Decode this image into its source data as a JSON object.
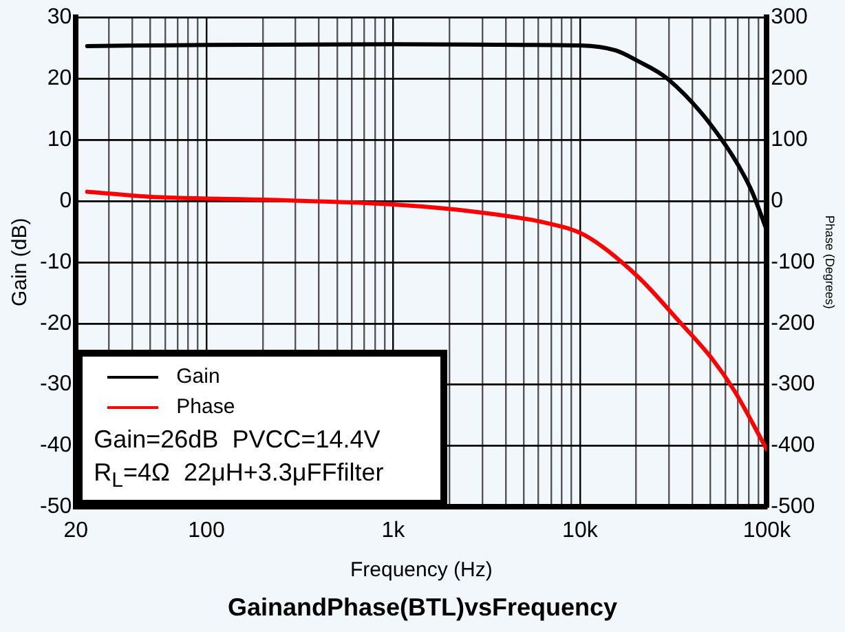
{
  "chart_data": {
    "type": "line",
    "title": "GainandPhase(BTL)vsFrequency",
    "xlabel": "Frequency (Hz)",
    "ylabel": "Gain (dB)",
    "y2label": "Phase (Degrees)",
    "log": "x",
    "grid": true,
    "legend": "bottom left",
    "marker": "none",
    "line_style": "solid",
    "xlim": [
      20,
      100000
    ],
    "xticks": [
      20,
      {
        "value": 30,
        "label": null
      },
      {
        "value": 40,
        "label": null
      },
      {
        "value": 50,
        "label": null
      },
      {
        "value": 60,
        "label": null
      },
      {
        "value": 70,
        "label": null
      },
      {
        "value": 80,
        "label": null
      },
      {
        "value": 90,
        "label": null
      },
      100,
      {
        "value": 200,
        "label": null
      },
      {
        "value": 300,
        "label": null
      },
      {
        "value": 400,
        "label": null
      },
      {
        "value": 500,
        "label": null
      },
      {
        "value": 600,
        "label": null
      },
      {
        "value": 700,
        "label": null
      },
      {
        "value": 800,
        "label": null
      },
      {
        "value": 900,
        "label": null
      },
      {
        "value": 1000,
        "label": "1k"
      },
      {
        "value": 2000,
        "label": null
      },
      {
        "value": 3000,
        "label": null
      },
      {
        "value": 4000,
        "label": null
      },
      {
        "value": 5000,
        "label": null
      },
      {
        "value": 6000,
        "label": null
      },
      {
        "value": 7000,
        "label": null
      },
      {
        "value": 8000,
        "label": null
      },
      {
        "value": 9000,
        "label": null
      },
      {
        "value": 10000,
        "label": "10k"
      },
      {
        "value": 20000,
        "label": null
      },
      {
        "value": 30000,
        "label": null
      },
      {
        "value": 40000,
        "label": null
      },
      {
        "value": 50000,
        "label": null
      },
      {
        "value": 60000,
        "label": null
      },
      {
        "value": 70000,
        "label": null
      },
      {
        "value": 80000,
        "label": null
      },
      {
        "value": 90000,
        "label": null
      },
      {
        "value": 100000,
        "label": "100k"
      }
    ],
    "ylim": [
      -50,
      30
    ],
    "yticks": [
      -50,
      -40,
      -30,
      -20,
      -10,
      0,
      10,
      20,
      30
    ],
    "y2lim": [
      -500,
      300
    ],
    "y2ticks": [
      -500,
      -400,
      -300,
      -200,
      -100,
      0,
      100,
      200,
      300
    ],
    "series": [
      {
        "name": "Gain",
        "color": "#000000",
        "x": [
          23,
          100,
          1000,
          5000,
          10000,
          15500,
          20000,
          29600,
          52600,
          82000,
          100000
        ],
        "values": [
          25.3,
          25.5,
          25.6,
          25.5,
          25.4,
          24.6,
          23,
          19.9,
          11.6,
          2,
          -4.8
        ]
      },
      {
        "name": "Phase",
        "color": "#ff0000",
        "axis": "y2",
        "x": [
          23,
          49,
          203,
          900,
          2800,
          6600,
          10600,
          20300,
          34000,
          51000,
          67000,
          100000
        ],
        "values": [
          15,
          7,
          2,
          -5,
          -18,
          -36,
          -56,
          -123,
          -197,
          -258,
          -310,
          -406
        ]
      }
    ],
    "annotations": [
      "Gain=26dB  PVCC=14.4V",
      "R$_{L}$=4Ω  22μH+3.3μFFfilter"
    ]
  }
}
